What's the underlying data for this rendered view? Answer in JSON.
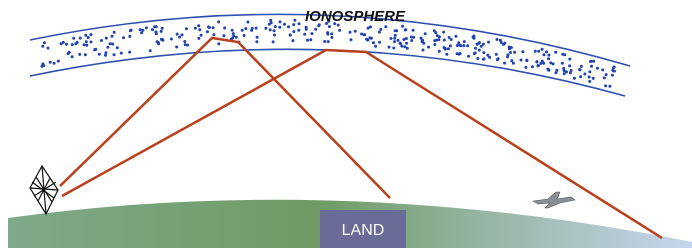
{
  "labels": {
    "ionosphere": "IONOSPHERE",
    "land": "LAND"
  }
}
